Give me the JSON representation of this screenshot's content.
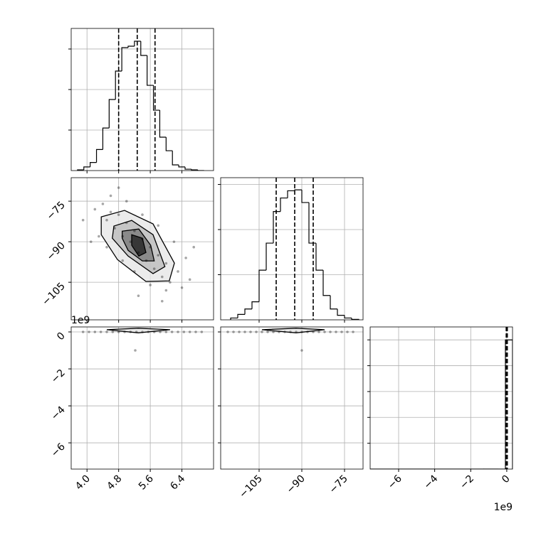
{
  "chart_data": [
    {
      "type": "histogram",
      "bins": [
        3.76,
        3.92,
        4.08,
        4.24,
        4.4,
        4.56,
        4.72,
        4.88,
        5.04,
        5.2,
        5.36,
        5.52,
        5.68,
        5.84,
        6.0,
        6.16,
        6.32,
        6.48,
        6.64,
        6.8,
        6.96
      ],
      "counts": [
        9,
        45,
        100,
        260,
        525,
        877,
        1228,
        1517,
        1535,
        1596,
        1421,
        1052,
        745,
        412,
        245,
        70,
        45,
        17,
        9,
        0
      ],
      "xlim": [
        3.6,
        7.2
      ],
      "ylim": [
        0,
        1754
      ],
      "yticks": [
        500,
        1000,
        1500
      ],
      "quantiles": [
        4.8,
        5.27,
        5.72
      ],
      "grid": true
    },
    {
      "type": "scatter2d",
      "x": [
        4.2,
        4.4,
        4.5,
        4.6,
        4.7,
        4.8,
        4.9,
        5.0,
        5.1,
        5.2,
        5.3,
        5.4,
        5.5,
        5.6,
        5.7,
        5.8,
        5.9,
        6.0,
        6.1,
        6.3,
        6.4,
        4.3,
        4.5,
        4.9,
        5.2,
        5.6,
        6.0,
        4.6,
        5.0,
        5.4,
        5.8,
        6.2,
        6.5,
        3.9,
        4.1,
        6.6,
        5.3,
        4.8,
        6.7,
        5.9
      ],
      "y": [
        -78,
        -76,
        -82,
        -79,
        -85,
        -80,
        -88,
        -83,
        -90,
        -86,
        -94,
        -89,
        -97,
        -92,
        -100,
        -95,
        -103,
        -98,
        -105,
        -101,
        -107,
        -88,
        -92,
        -97,
        -101,
        -106,
        -108,
        -73,
        -75,
        -80,
        -84,
        -90,
        -96,
        -82,
        -90,
        -104,
        -110,
        -70,
        -92,
        -112
      ],
      "contours": [
        {
          "x": [
            4.36,
            4.95,
            5.67,
            6.21,
            6.08,
            5.49,
            4.77,
            4.36
          ],
          "y": [
            -80.8,
            -78.4,
            -83.4,
            -97.9,
            -104.5,
            -104.7,
            -96.6,
            -87.4
          ]
        },
        {
          "x": [
            4.68,
            5.13,
            5.67,
            5.97,
            5.67,
            5.04,
            4.64
          ],
          "y": [
            -84.2,
            -82.1,
            -87.4,
            -99.2,
            -101.8,
            -95.3,
            -88.7
          ]
        },
        {
          "x": [
            4.89,
            5.31,
            5.61,
            5.7,
            5.4,
            5.04,
            4.89
          ],
          "y": [
            -86.1,
            -85.3,
            -91.3,
            -97.1,
            -97.1,
            -93.2,
            -88.7
          ]
        },
        {
          "x": [
            5.13,
            5.4,
            5.49,
            5.31,
            5.13
          ],
          "y": [
            -87.4,
            -88.7,
            -94.0,
            -95.3,
            -91.3
          ]
        }
      ],
      "xlim": [
        3.6,
        7.2
      ],
      "ylim": [
        -118.9,
        -66.3
      ],
      "yticks": [
        {
          "value": -75,
          "label": "−75"
        },
        {
          "value": -90,
          "label": "−90"
        },
        {
          "value": -105,
          "label": "−105"
        }
      ],
      "grid": true
    },
    {
      "type": "histogram",
      "bins": [
        -115,
        -112.5,
        -110,
        -107.5,
        -105,
        -102.5,
        -100,
        -97.5,
        -95,
        -92.5,
        -90,
        -87.5,
        -85,
        -82.5,
        -80,
        -77.5,
        -75,
        -72.5,
        -70
      ],
      "counts": [
        20,
        60,
        120,
        200,
        550,
        850,
        1200,
        1350,
        1430,
        1440,
        1300,
        850,
        550,
        270,
        120,
        50,
        20,
        5
      ],
      "xlim": [
        -118.5,
        -68.5
      ],
      "ylim": [
        0,
        1575
      ],
      "yticks": [
        500,
        1000,
        1500
      ],
      "quantiles": [
        -99,
        -92.5,
        -86
      ],
      "grid": true
    },
    {
      "type": "scatter2d",
      "x": [
        3.9,
        4.05,
        4.2,
        4.35,
        4.5,
        4.65,
        4.8,
        4.95,
        5.1,
        5.25,
        5.4,
        5.55,
        5.7,
        5.85,
        6.0,
        6.15,
        6.3,
        6.45,
        6.6,
        6.75,
        6.9,
        5.22
      ],
      "y": [
        0,
        0,
        0,
        0,
        0,
        0,
        0,
        0,
        0,
        0,
        0,
        0,
        0,
        0,
        0,
        0,
        0,
        0,
        0,
        0,
        0,
        -1.0
      ],
      "contours": [
        {
          "x": [
            4.5,
            5.3,
            6.1,
            5.3,
            4.5
          ],
          "y": [
            0.12,
            0.2,
            0.12,
            -0.05,
            0.12
          ]
        }
      ],
      "xlim": [
        3.6,
        7.2
      ],
      "ylim": [
        -7.42,
        0.27
      ],
      "xticks": [
        {
          "value": 4.0,
          "label": "4.0"
        },
        4.8,
        5.6,
        6.4
      ],
      "yticks": [
        0,
        {
          "value": -2,
          "label": "−2"
        },
        {
          "value": -4,
          "label": "−4"
        },
        {
          "value": -6,
          "label": "−6"
        }
      ],
      "y_offset_label": "1e9",
      "grid": true
    },
    {
      "type": "scatter2d",
      "x": [
        -116,
        -114,
        -112,
        -110,
        -108,
        -106,
        -104,
        -102,
        -100,
        -98,
        -96,
        -94,
        -92,
        -90,
        -88,
        -86,
        -84,
        -82,
        -80,
        -78,
        -76,
        -74,
        -72,
        -90
      ],
      "y": [
        0,
        0,
        0,
        0,
        0,
        0,
        0,
        0,
        0,
        0,
        0,
        0,
        0,
        0,
        0,
        0,
        0,
        0,
        0,
        0,
        0,
        0,
        0,
        -1.0
      ],
      "contours": [
        {
          "x": [
            -104,
            -92,
            -82,
            -92,
            -104
          ],
          "y": [
            0.12,
            0.2,
            0.12,
            -0.05,
            0.12
          ]
        }
      ],
      "xlim": [
        -118.5,
        -68.5
      ],
      "ylim": [
        -7.42,
        0.27
      ],
      "xticks": [
        {
          "value": -105,
          "label": "−105"
        },
        {
          "value": -90,
          "label": "−90"
        },
        {
          "value": -75,
          "label": "−75"
        }
      ],
      "grid": true
    },
    {
      "type": "histogram",
      "bins": [
        -7.58,
        -7.185,
        -6.79,
        -6.395,
        -6.0,
        -5.605,
        -5.21,
        -4.815,
        -4.42,
        -4.025,
        -3.63,
        -3.235,
        -2.84,
        -2.445,
        -2.05,
        -1.655,
        -1.26,
        -0.865,
        -0.47,
        -0.075,
        0.32
      ],
      "counts": [
        0,
        0,
        0,
        0,
        0,
        0,
        0,
        0,
        0,
        0,
        0,
        0,
        0,
        0,
        0,
        0,
        1,
        0,
        0,
        4999
      ],
      "xlim": [
        -7.58,
        0.32
      ],
      "ylim": [
        0,
        5500
      ],
      "yticks": [
        1000,
        2000,
        3000,
        4000,
        5000
      ],
      "quantiles": [
        -0.03,
        0,
        0.03
      ],
      "xticks": [
        {
          "value": -6,
          "label": "−6"
        },
        {
          "value": -4,
          "label": "−4"
        },
        {
          "value": -2,
          "label": "−2"
        },
        0
      ],
      "x_offset_label": "1e9",
      "grid": true
    }
  ]
}
